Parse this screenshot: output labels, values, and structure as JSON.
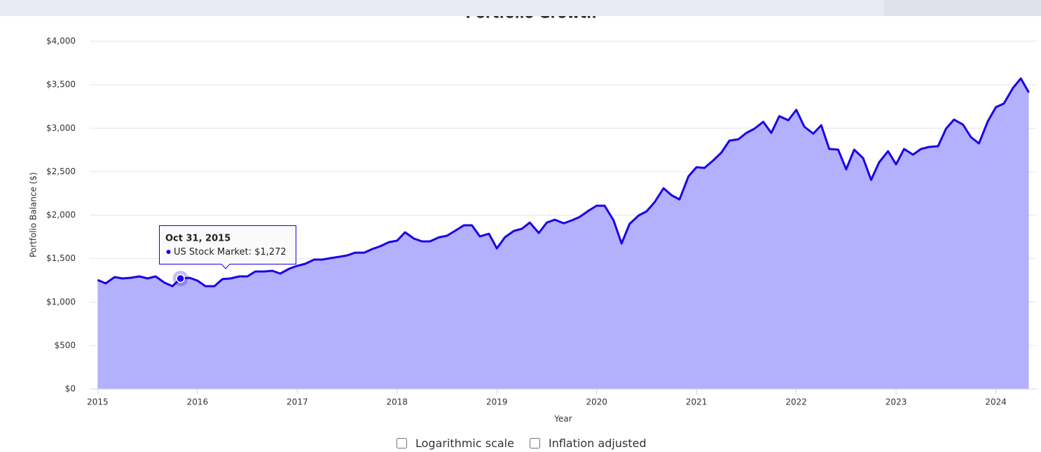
{
  "chart_data": {
    "type": "area",
    "title": "Portfolio Growth",
    "x_label": "Year",
    "y_label": "Portfolio Balance ($)",
    "x": [
      2015,
      2015.08,
      2015.17,
      2015.25,
      2015.33,
      2015.42,
      2015.5,
      2015.58,
      2015.67,
      2015.75,
      2015.83,
      2015.92,
      2016,
      2016.08,
      2016.17,
      2016.25,
      2016.33,
      2016.42,
      2016.5,
      2016.58,
      2016.67,
      2016.75,
      2016.83,
      2016.92,
      2017,
      2017.08,
      2017.17,
      2017.25,
      2017.33,
      2017.42,
      2017.5,
      2017.58,
      2017.67,
      2017.75,
      2017.83,
      2017.92,
      2018,
      2018.08,
      2018.17,
      2018.25,
      2018.33,
      2018.42,
      2018.5,
      2018.58,
      2018.67,
      2018.75,
      2018.83,
      2018.92,
      2019,
      2019.08,
      2019.17,
      2019.25,
      2019.33,
      2019.42,
      2019.5,
      2019.58,
      2019.67,
      2019.75,
      2019.83,
      2019.92,
      2020,
      2020.08,
      2020.17,
      2020.25,
      2020.33,
      2020.42,
      2020.5,
      2020.58,
      2020.67,
      2020.75,
      2020.83,
      2020.92,
      2021,
      2021.08,
      2021.17,
      2021.25,
      2021.33,
      2021.42,
      2021.5,
      2021.58,
      2021.67,
      2021.75,
      2021.83,
      2021.92,
      2022,
      2022.08,
      2022.17,
      2022.25,
      2022.33,
      2022.42,
      2022.5,
      2022.58,
      2022.67,
      2022.75,
      2022.83,
      2022.92,
      2023,
      2023.08,
      2023.17,
      2023.25,
      2023.33,
      2023.42,
      2023.5,
      2023.58,
      2023.67,
      2023.75,
      2023.83,
      2023.92,
      2024,
      2024.08,
      2024.17,
      2024.25,
      2024.33
    ],
    "series": [
      {
        "name": "US Stock Market",
        "color": "#1a00e8",
        "fill": "#b3b0fd",
        "values": [
          1255,
          1215,
          1288,
          1272,
          1280,
          1296,
          1272,
          1296,
          1223,
          1183,
          1272,
          1280,
          1247,
          1183,
          1183,
          1264,
          1272,
          1296,
          1296,
          1352,
          1352,
          1360,
          1328,
          1384,
          1417,
          1441,
          1489,
          1489,
          1505,
          1521,
          1537,
          1569,
          1569,
          1610,
          1642,
          1690,
          1706,
          1803,
          1730,
          1698,
          1698,
          1746,
          1763,
          1819,
          1883,
          1883,
          1755,
          1787,
          1618,
          1746,
          1819,
          1843,
          1915,
          1795,
          1915,
          1948,
          1907,
          1940,
          1980,
          2052,
          2109,
          2109,
          1940,
          1674,
          1899,
          1996,
          2044,
          2149,
          2310,
          2229,
          2181,
          2447,
          2551,
          2543,
          2632,
          2720,
          2857,
          2873,
          2946,
          2994,
          3074,
          2946,
          3139,
          3091,
          3211,
          3018,
          2938,
          3034,
          2761,
          2753,
          2527,
          2753,
          2656,
          2406,
          2608,
          2736,
          2584,
          2761,
          2696,
          2761,
          2785,
          2793,
          2994,
          3099,
          3042,
          2897,
          2825,
          3082,
          3243,
          3284,
          3461,
          3573,
          3412
        ]
      }
    ],
    "xlim": [
      2014.92,
      2024.41
    ],
    "xticks": [
      2015,
      2016,
      2017,
      2018,
      2019,
      2020,
      2021,
      2022,
      2023,
      2024
    ],
    "ylim": [
      0,
      4000
    ],
    "yticks": [
      {
        "value": 0,
        "label": "$0"
      },
      {
        "value": 500,
        "label": "$500"
      },
      {
        "value": 1000,
        "label": "$1,000"
      },
      {
        "value": 1500,
        "label": "$1,500"
      },
      {
        "value": 2000,
        "label": "$2,000"
      },
      {
        "value": 2500,
        "label": "$2,500"
      },
      {
        "value": 3000,
        "label": "$3,000"
      },
      {
        "value": 3500,
        "label": "$3,500"
      },
      {
        "value": 4000,
        "label": "$4,000"
      }
    ],
    "grid": true,
    "tooltip": {
      "date": "Oct 31, 2015",
      "value_label": "$1,272"
    },
    "options": [
      "Logarithmic scale",
      "Inflation adjusted"
    ]
  }
}
